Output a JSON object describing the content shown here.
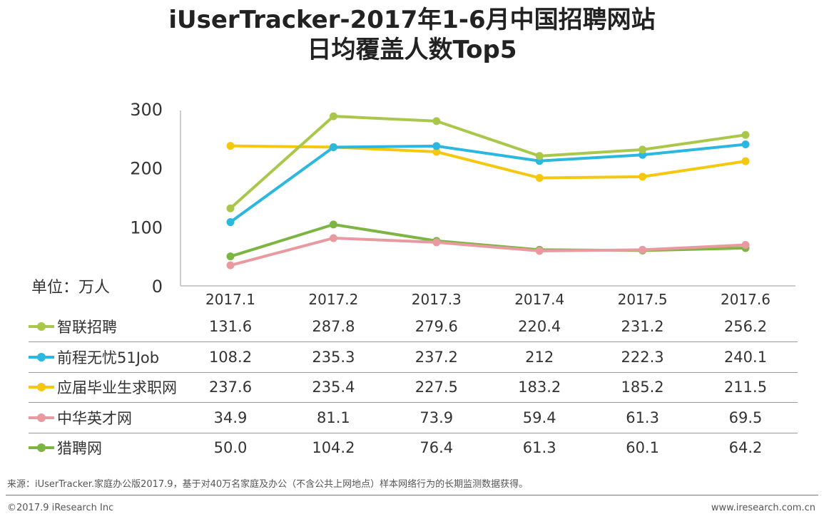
{
  "chart_data": {
    "type": "line",
    "title": "iUserTracker-2017年1-6月中国招聘网站",
    "subtitle": "日均覆盖人数Top5",
    "ylabel": "单位：万人",
    "xlabel": "",
    "ylim": [
      0,
      300
    ],
    "yticks": [
      "0",
      "100",
      "200",
      "300"
    ],
    "categories": [
      "2017.1",
      "2017.2",
      "2017.3",
      "2017.4",
      "2017.5",
      "2017.6"
    ],
    "series": [
      {
        "name": "智联招聘",
        "color": "#a9c84b",
        "values": [
          131.6,
          287.8,
          279.6,
          220.4,
          231.2,
          256.2
        ],
        "labels": [
          "131.6",
          "287.8",
          "279.6",
          "220.4",
          "231.2",
          "256.2"
        ]
      },
      {
        "name": "前程无忧51Job",
        "color": "#2bb7e0",
        "values": [
          108.2,
          235.3,
          237.2,
          212,
          222.3,
          240.1
        ],
        "labels": [
          "108.2",
          "235.3",
          "237.2",
          "212",
          "222.3",
          "240.1"
        ]
      },
      {
        "name": "应届毕业生求职网",
        "color": "#f5c80f",
        "values": [
          237.6,
          235.4,
          227.5,
          183.2,
          185.2,
          211.5
        ],
        "labels": [
          "237.6",
          "235.4",
          "227.5",
          "183.2",
          "185.2",
          "211.5"
        ]
      },
      {
        "name": "中华英才网",
        "color": "#e99aa1",
        "values": [
          34.9,
          81.1,
          73.9,
          59.4,
          61.3,
          69.5
        ],
        "labels": [
          "34.9",
          "81.1",
          "73.9",
          "59.4",
          "61.3",
          "69.5"
        ]
      },
      {
        "name": "猎聘网",
        "color": "#7db543",
        "values": [
          50.0,
          104.2,
          76.4,
          61.3,
          60.1,
          64.2
        ],
        "labels": [
          "50.0",
          "104.2",
          "76.4",
          "61.3",
          "60.1",
          "64.2"
        ]
      }
    ],
    "grid": false,
    "legend": "table-bottom"
  },
  "footer": {
    "source": "来源：iUserTracker.家庭办公版2017.9，基于对40万名家庭及办公（不含公共上网地点）样本网络行为的长期监测数据获得。",
    "copyright": "©2017.9 iResearch Inc",
    "website": "www.iresearch.com.cn"
  }
}
